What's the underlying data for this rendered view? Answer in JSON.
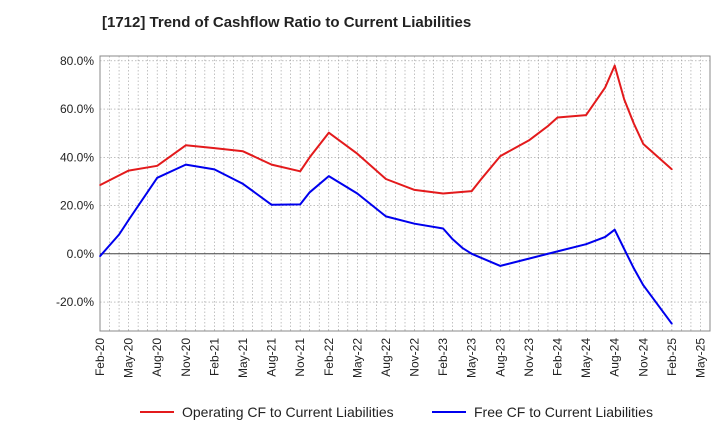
{
  "chart_data": {
    "type": "line",
    "title": "[1712]  Trend of Cashflow Ratio to Current Liabilities",
    "xlabel": "",
    "ylabel": "",
    "ylim": [
      -32,
      82
    ],
    "yticks": [
      80,
      60,
      40,
      20,
      0,
      -20
    ],
    "ytick_labels": [
      "80.0%",
      "60.0%",
      "40.0%",
      "20.0%",
      "0.0%",
      "-20.0%"
    ],
    "x_ticks": [
      "Feb-20",
      "May-20",
      "Aug-20",
      "Nov-20",
      "Feb-21",
      "May-21",
      "Aug-21",
      "Nov-21",
      "Feb-22",
      "May-22",
      "Aug-22",
      "Nov-22",
      "Feb-23",
      "May-23",
      "Aug-23",
      "Nov-23",
      "Feb-24",
      "May-24",
      "Aug-24",
      "Nov-24",
      "Feb-25",
      "May-25"
    ],
    "grid": true,
    "legend_position": "bottom",
    "series": [
      {
        "name": "Operating CF to Current Liabilities",
        "color": "#e31a1c",
        "x": [
          "Feb-20",
          "Apr-20",
          "May-20",
          "Aug-20",
          "Nov-20",
          "Feb-21",
          "May-21",
          "Aug-21",
          "Nov-21",
          "Dec-21",
          "Feb-22",
          "May-22",
          "Aug-22",
          "Nov-22",
          "Feb-23",
          "May-23",
          "Jun-23",
          "Aug-23",
          "Nov-23",
          "Jan-24",
          "Feb-24",
          "May-24",
          "Jul-24",
          "Aug-24",
          "Sep-24",
          "Oct-24",
          "Nov-24",
          "Feb-25"
        ],
        "values": [
          28.5,
          32.5,
          34.5,
          36.5,
          45.0,
          43.8,
          42.5,
          37.0,
          34.2,
          40.0,
          50.2,
          41.5,
          31.0,
          26.5,
          25.0,
          26.0,
          31.0,
          40.5,
          47.0,
          53.0,
          56.5,
          57.5,
          69.0,
          78.0,
          64.0,
          54.0,
          45.5,
          35.0
        ]
      },
      {
        "name": "Free CF to Current Liabilities",
        "color": "#0000ee",
        "x": [
          "Feb-20",
          "Apr-20",
          "May-20",
          "Aug-20",
          "Nov-20",
          "Feb-21",
          "May-21",
          "Aug-21",
          "Nov-21",
          "Dec-21",
          "Feb-22",
          "May-22",
          "Aug-22",
          "Nov-22",
          "Feb-23",
          "Mar-23",
          "Apr-23",
          "May-23",
          "Aug-23",
          "Nov-23",
          "Feb-24",
          "May-24",
          "Jul-24",
          "Aug-24",
          "Sep-24",
          "Oct-24",
          "Nov-24",
          "Feb-25"
        ],
        "values": [
          -1.0,
          8.0,
          14.0,
          31.5,
          37.0,
          35.0,
          29.0,
          20.3,
          20.5,
          25.5,
          32.2,
          25.0,
          15.5,
          12.5,
          10.5,
          6.0,
          2.5,
          0.0,
          -5.0,
          -2.0,
          1.0,
          4.0,
          7.0,
          10.0,
          2.0,
          -6.0,
          -13.0,
          -29.0
        ]
      }
    ]
  }
}
